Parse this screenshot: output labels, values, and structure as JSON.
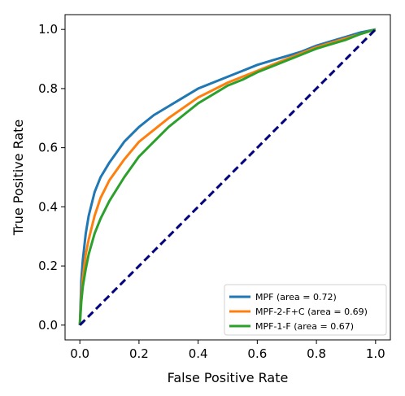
{
  "chart_data": {
    "type": "line",
    "title": "",
    "xlabel": "False Positive Rate",
    "ylabel": "True Positive Rate",
    "xlim": [
      -0.05,
      1.05
    ],
    "ylim": [
      -0.05,
      1.05
    ],
    "xticks": [
      0.0,
      0.2,
      0.4,
      0.6,
      0.8,
      1.0
    ],
    "yticks": [
      0.0,
      0.2,
      0.4,
      0.6,
      0.8,
      1.0
    ],
    "xtick_labels": [
      "0.0",
      "0.2",
      "0.4",
      "0.6",
      "0.8",
      "1.0"
    ],
    "ytick_labels": [
      "0.0",
      "0.2",
      "0.4",
      "0.6",
      "0.8",
      "1.0"
    ],
    "grid": false,
    "legend_position": "lower-right",
    "series": [
      {
        "name": "MPF (area = 0.72)",
        "color": "#1f77b4",
        "style": "solid",
        "x": [
          0,
          0.005,
          0.01,
          0.02,
          0.03,
          0.05,
          0.07,
          0.1,
          0.15,
          0.2,
          0.25,
          0.3,
          0.35,
          0.4,
          0.45,
          0.5,
          0.55,
          0.6,
          0.65,
          0.7,
          0.75,
          0.8,
          0.85,
          0.9,
          0.95,
          1.0
        ],
        "y": [
          0,
          0.15,
          0.22,
          0.31,
          0.37,
          0.45,
          0.5,
          0.55,
          0.62,
          0.67,
          0.71,
          0.74,
          0.77,
          0.8,
          0.82,
          0.84,
          0.86,
          0.88,
          0.895,
          0.91,
          0.925,
          0.945,
          0.96,
          0.975,
          0.99,
          1.0
        ]
      },
      {
        "name": "MPF-2-F+C (area = 0.69)",
        "color": "#ff7f0e",
        "style": "solid",
        "x": [
          0,
          0.005,
          0.01,
          0.02,
          0.03,
          0.05,
          0.07,
          0.1,
          0.15,
          0.2,
          0.25,
          0.3,
          0.35,
          0.4,
          0.45,
          0.5,
          0.55,
          0.6,
          0.65,
          0.7,
          0.75,
          0.8,
          0.85,
          0.9,
          0.95,
          1.0
        ],
        "y": [
          0,
          0.1,
          0.16,
          0.24,
          0.29,
          0.37,
          0.43,
          0.49,
          0.56,
          0.62,
          0.66,
          0.7,
          0.735,
          0.77,
          0.795,
          0.82,
          0.84,
          0.86,
          0.88,
          0.9,
          0.92,
          0.94,
          0.955,
          0.97,
          0.985,
          1.0
        ]
      },
      {
        "name": "MPF-1-F (area = 0.67)",
        "color": "#2ca02c",
        "style": "solid",
        "x": [
          0,
          0.005,
          0.01,
          0.02,
          0.03,
          0.05,
          0.07,
          0.1,
          0.15,
          0.2,
          0.25,
          0.3,
          0.35,
          0.4,
          0.45,
          0.5,
          0.55,
          0.6,
          0.65,
          0.7,
          0.75,
          0.8,
          0.85,
          0.9,
          0.95,
          1.0
        ],
        "y": [
          0,
          0.08,
          0.13,
          0.19,
          0.24,
          0.31,
          0.36,
          0.42,
          0.5,
          0.57,
          0.62,
          0.67,
          0.71,
          0.75,
          0.78,
          0.81,
          0.83,
          0.855,
          0.875,
          0.895,
          0.915,
          0.935,
          0.95,
          0.965,
          0.985,
          1.0
        ]
      },
      {
        "name": "",
        "color": "#000080",
        "style": "dashed",
        "x": [
          0,
          1
        ],
        "y": [
          0,
          1
        ]
      }
    ]
  }
}
